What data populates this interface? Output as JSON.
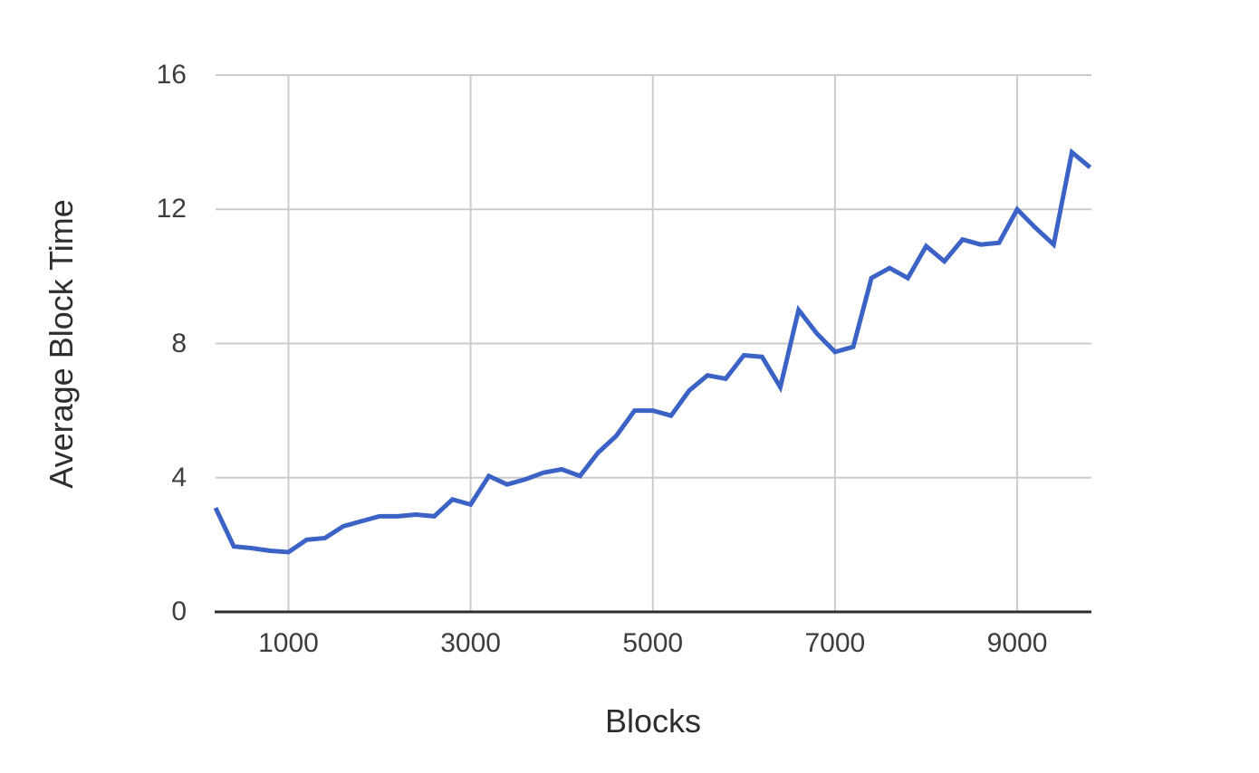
{
  "chart_data": {
    "type": "line",
    "title": "",
    "xlabel": "Blocks",
    "ylabel": "Average Block Time",
    "x": [
      200,
      400,
      600,
      800,
      1000,
      1200,
      1400,
      1600,
      1800,
      2000,
      2200,
      2400,
      2600,
      2800,
      3000,
      3200,
      3400,
      3600,
      3800,
      4000,
      4200,
      4400,
      4600,
      4800,
      5000,
      5200,
      5400,
      5600,
      5800,
      6000,
      6200,
      6400,
      6600,
      6800,
      7000,
      7200,
      7400,
      7600,
      7800,
      8000,
      8200,
      8400,
      8600,
      8800,
      9000,
      9200,
      9400,
      9600,
      9800
    ],
    "series": [
      {
        "name": "average-block-time",
        "values": [
          3.1,
          1.95,
          1.9,
          1.82,
          1.78,
          2.15,
          2.2,
          2.55,
          2.7,
          2.85,
          2.85,
          2.9,
          2.85,
          3.35,
          3.2,
          4.05,
          3.8,
          3.95,
          4.15,
          4.25,
          4.05,
          4.75,
          5.25,
          6.0,
          6.0,
          5.85,
          6.6,
          7.05,
          6.95,
          7.65,
          7.6,
          6.7,
          9.0,
          8.3,
          7.75,
          7.9,
          9.95,
          10.25,
          9.95,
          10.9,
          10.45,
          11.1,
          10.95,
          11.0,
          12.0,
          11.45,
          10.95,
          13.7,
          13.25
        ]
      }
    ],
    "x_ticks": [
      1000,
      3000,
      5000,
      7000,
      9000
    ],
    "y_ticks": [
      0,
      4,
      8,
      12,
      16
    ],
    "xlim": [
      200,
      9815
    ],
    "ylim": [
      0,
      16
    ],
    "grid": true,
    "legend_position": "none",
    "colors": {
      "line": "#3b63c6",
      "grid": "#cccccc",
      "axis": "#2e2e2e",
      "text": "#3d3d3d",
      "background": "#ffffff"
    }
  }
}
